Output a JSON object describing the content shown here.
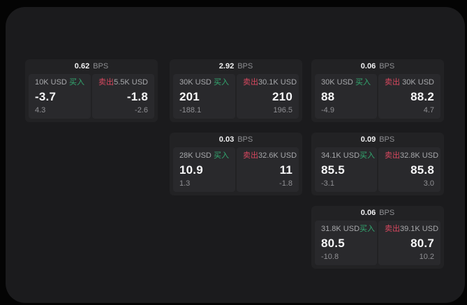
{
  "page": {
    "background": "#040404",
    "panel_background": "#1b1b1d",
    "card_background": "#222224",
    "subpanel_background": "#29292c"
  },
  "colors": {
    "buy_green": "#32a970",
    "sell_red": "#d8485f",
    "text_bright": "#f5f5f6",
    "text_gray": "#a7a8ab",
    "text_dim": "#909094"
  },
  "labels": {
    "bps": "BPS",
    "buy": "买入",
    "sell": "卖出"
  },
  "cards": [
    {
      "grid": {
        "col": 0,
        "row": 0
      },
      "bps": "0.62",
      "buy": {
        "amount": "10K USD",
        "price": "-3.7",
        "delta": "4.3"
      },
      "sell": {
        "amount": "5.5K USD",
        "price": "-1.8",
        "delta": "-2.6"
      }
    },
    {
      "grid": {
        "col": 1,
        "row": 0
      },
      "bps": "2.92",
      "buy": {
        "amount": "30K USD",
        "price": "201",
        "delta": "-188.1"
      },
      "sell": {
        "amount": "30.1K USD",
        "price": "210",
        "delta": "196.5"
      }
    },
    {
      "grid": {
        "col": 2,
        "row": 0
      },
      "bps": "0.06",
      "buy": {
        "amount": "30K USD",
        "price": "88",
        "delta": "-4.9"
      },
      "sell": {
        "amount": "30K USD",
        "price": "88.2",
        "delta": "4.7"
      }
    },
    {
      "grid": {
        "col": 1,
        "row": 1
      },
      "bps": "0.03",
      "buy": {
        "amount": "28K USD",
        "price": "10.9",
        "delta": "1.3"
      },
      "sell": {
        "amount": "32.6K USD",
        "price": "11",
        "delta": "-1.8"
      }
    },
    {
      "grid": {
        "col": 2,
        "row": 1
      },
      "bps": "0.09",
      "buy": {
        "amount": "34.1K USD",
        "price": "85.5",
        "delta": "-3.1"
      },
      "sell": {
        "amount": "32.8K USD",
        "price": "85.8",
        "delta": "3.0"
      }
    },
    {
      "grid": {
        "col": 2,
        "row": 2
      },
      "bps": "0.06",
      "buy": {
        "amount": "31.8K USD",
        "price": "80.5",
        "delta": "-10.8"
      },
      "sell": {
        "amount": "39.1K USD",
        "price": "80.7",
        "delta": "10.2"
      }
    }
  ]
}
